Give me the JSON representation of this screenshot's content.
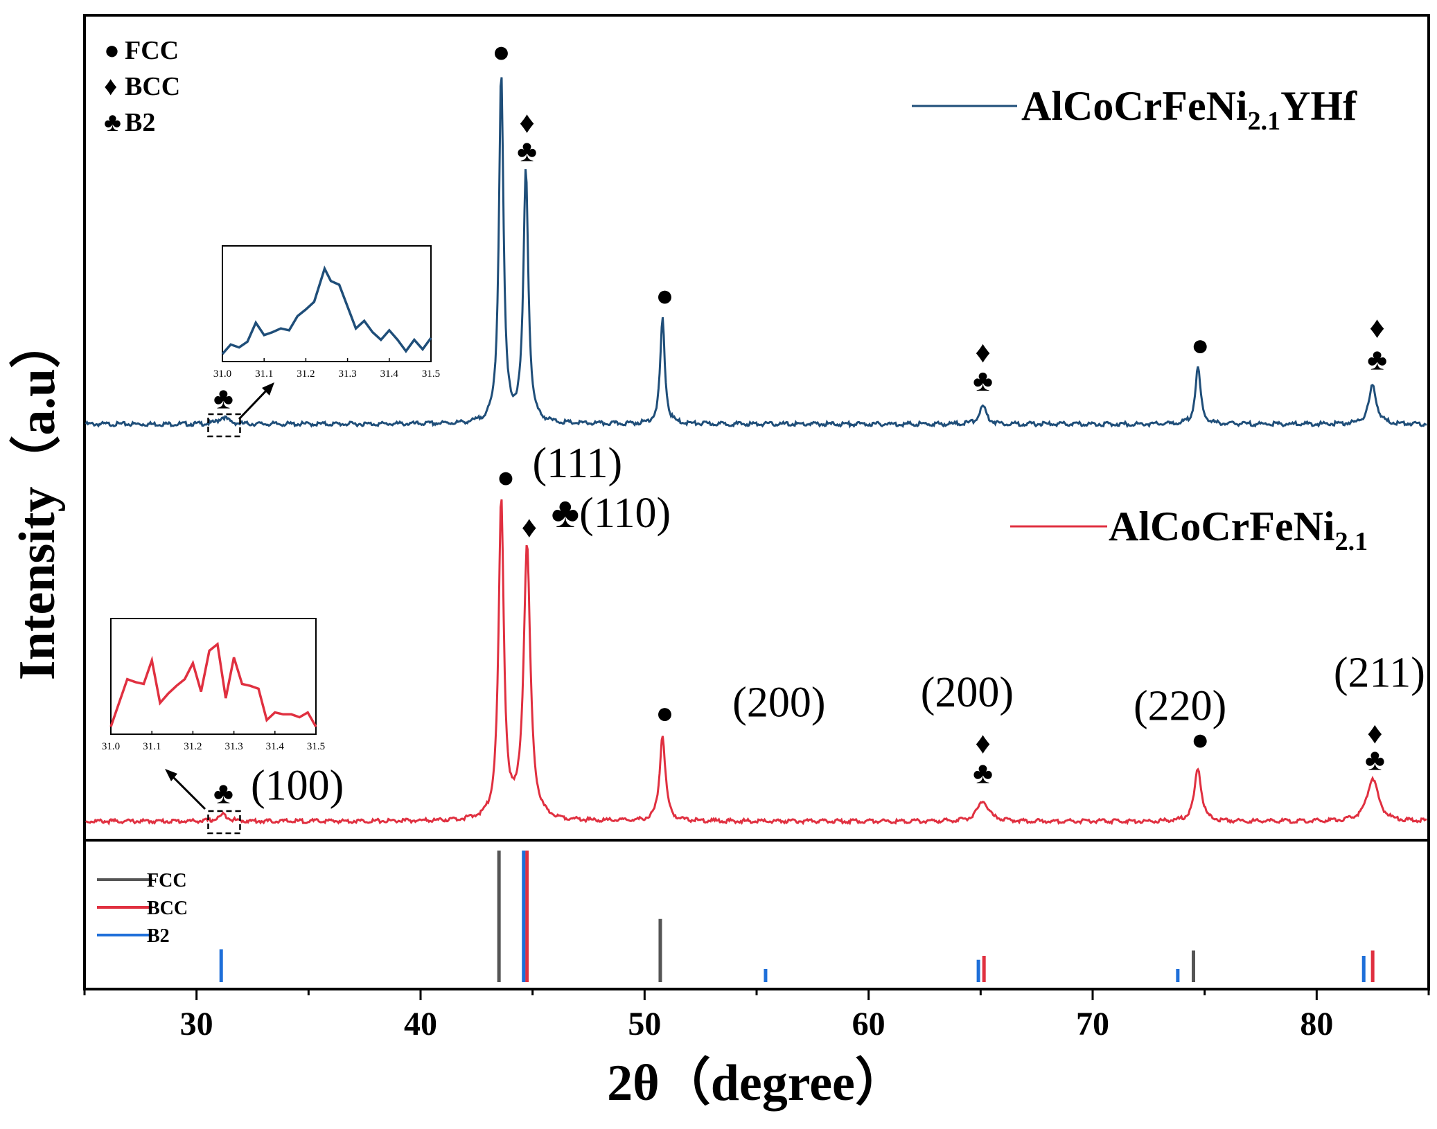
{
  "chart_data": {
    "type": "line",
    "xlabel": "2θ（degree）",
    "ylabel": "Intensity（a.u）",
    "xlim": [
      25,
      85
    ],
    "x_ticks": [
      "30",
      "40",
      "50",
      "60",
      "70",
      "80"
    ],
    "phase_legend": [
      {
        "symbol": "●",
        "label": "FCC"
      },
      {
        "symbol": "♦",
        "label": "BCC"
      },
      {
        "symbol": "♣",
        "label": "B2"
      }
    ],
    "series": [
      {
        "name": "AlCoCrFeNi2.1YHf",
        "name_main": "AlCoCrFeNi",
        "name_sub": "2.1",
        "name_tail": "YHf",
        "color": "#1f4e79",
        "baseline": 0.015,
        "peaks": [
          {
            "x": 31.2,
            "h": 0.02,
            "w": 0.25
          },
          {
            "x": 43.6,
            "h": 1.0,
            "w": 0.12
          },
          {
            "x": 44.7,
            "h": 0.72,
            "w": 0.13
          },
          {
            "x": 50.8,
            "h": 0.3,
            "w": 0.12
          },
          {
            "x": 65.1,
            "h": 0.05,
            "w": 0.2
          },
          {
            "x": 74.7,
            "h": 0.16,
            "w": 0.14
          },
          {
            "x": 82.5,
            "h": 0.11,
            "w": 0.2
          }
        ],
        "annotations": [
          {
            "x": 43.6,
            "y": 1.04,
            "text": "●"
          },
          {
            "x": 44.75,
            "y": 0.84,
            "text": "♦"
          },
          {
            "x": 44.75,
            "y": 0.76,
            "text": "♣"
          },
          {
            "x": 50.9,
            "y": 0.35,
            "text": "●"
          },
          {
            "x": 65.1,
            "y": 0.19,
            "text": "♦"
          },
          {
            "x": 65.1,
            "y": 0.11,
            "text": "♣"
          },
          {
            "x": 74.8,
            "y": 0.21,
            "text": "●"
          },
          {
            "x": 82.7,
            "y": 0.26,
            "text": "♦"
          },
          {
            "x": 82.7,
            "y": 0.17,
            "text": "♣"
          },
          {
            "x": 31.2,
            "y": 0.06,
            "text": "♣"
          }
        ]
      },
      {
        "name": "AlCoCrFeNi2.1",
        "name_main": "AlCoCrFeNi",
        "name_sub": "2.1",
        "name_tail": "",
        "color": "#e03040",
        "baseline": 0.015,
        "peaks": [
          {
            "x": 31.2,
            "h": 0.02,
            "w": 0.25
          },
          {
            "x": 43.6,
            "h": 0.96,
            "w": 0.14
          },
          {
            "x": 44.75,
            "h": 0.82,
            "w": 0.18
          },
          {
            "x": 50.8,
            "h": 0.26,
            "w": 0.15
          },
          {
            "x": 65.1,
            "h": 0.06,
            "w": 0.3
          },
          {
            "x": 74.7,
            "h": 0.16,
            "w": 0.18
          },
          {
            "x": 82.5,
            "h": 0.13,
            "w": 0.3
          }
        ],
        "annotations": [
          {
            "x": 43.8,
            "y": 1.02,
            "text": "●"
          },
          {
            "x": 44.85,
            "y": 0.87,
            "text": "♦"
          },
          {
            "x": 50.9,
            "y": 0.31,
            "text": "●"
          },
          {
            "x": 65.1,
            "y": 0.22,
            "text": "♦"
          },
          {
            "x": 65.1,
            "y": 0.13,
            "text": "♣"
          },
          {
            "x": 74.8,
            "y": 0.23,
            "text": "●"
          },
          {
            "x": 82.6,
            "y": 0.25,
            "text": "♦"
          },
          {
            "x": 82.6,
            "y": 0.17,
            "text": "♣"
          },
          {
            "x": 31.2,
            "y": 0.07,
            "text": "♣"
          }
        ],
        "plane_labels": [
          {
            "x": 47.0,
            "y": 1.05,
            "text": "(111)"
          },
          {
            "x": 48.5,
            "y": 0.9,
            "text": "♣(110)"
          },
          {
            "x": 56.0,
            "y": 0.33,
            "text": "(200)"
          },
          {
            "x": 64.4,
            "y": 0.36,
            "text": "(200)"
          },
          {
            "x": 73.9,
            "y": 0.32,
            "text": "(220)"
          },
          {
            "x": 82.8,
            "y": 0.42,
            "text": "(211)"
          },
          {
            "x": 34.5,
            "y": 0.08,
            "text": "(100)"
          }
        ]
      }
    ],
    "insets": [
      {
        "series": "AlCoCrFeNi2.1YHf",
        "xlim": [
          31.0,
          31.5
        ],
        "ticks": [
          "31.0",
          "31.1",
          "31.2",
          "31.3",
          "31.4",
          "31.5"
        ],
        "points": [
          [
            31.0,
            0.05
          ],
          [
            31.02,
            0.15
          ],
          [
            31.04,
            0.12
          ],
          [
            31.06,
            0.18
          ],
          [
            31.08,
            0.38
          ],
          [
            31.1,
            0.25
          ],
          [
            31.12,
            0.28
          ],
          [
            31.14,
            0.32
          ],
          [
            31.16,
            0.3
          ],
          [
            31.18,
            0.45
          ],
          [
            31.2,
            0.52
          ],
          [
            31.22,
            0.6
          ],
          [
            31.245,
            0.95
          ],
          [
            31.26,
            0.82
          ],
          [
            31.28,
            0.78
          ],
          [
            31.3,
            0.55
          ],
          [
            31.32,
            0.32
          ],
          [
            31.34,
            0.4
          ],
          [
            31.36,
            0.28
          ],
          [
            31.38,
            0.2
          ],
          [
            31.4,
            0.3
          ],
          [
            31.42,
            0.2
          ],
          [
            31.44,
            0.08
          ],
          [
            31.46,
            0.2
          ],
          [
            31.48,
            0.1
          ],
          [
            31.5,
            0.22
          ]
        ]
      },
      {
        "series": "AlCoCrFeNi2.1",
        "xlim": [
          31.0,
          31.5
        ],
        "ticks": [
          "31.0",
          "31.1",
          "31.2",
          "31.3",
          "31.4",
          "31.5"
        ],
        "points": [
          [
            31.0,
            0.05
          ],
          [
            31.02,
            0.3
          ],
          [
            31.04,
            0.55
          ],
          [
            31.06,
            0.52
          ],
          [
            31.08,
            0.5
          ],
          [
            31.1,
            0.75
          ],
          [
            31.12,
            0.3
          ],
          [
            31.14,
            0.4
          ],
          [
            31.16,
            0.48
          ],
          [
            31.18,
            0.55
          ],
          [
            31.2,
            0.72
          ],
          [
            31.22,
            0.42
          ],
          [
            31.24,
            0.85
          ],
          [
            31.26,
            0.92
          ],
          [
            31.28,
            0.35
          ],
          [
            31.3,
            0.78
          ],
          [
            31.32,
            0.5
          ],
          [
            31.34,
            0.48
          ],
          [
            31.36,
            0.45
          ],
          [
            31.38,
            0.12
          ],
          [
            31.4,
            0.2
          ],
          [
            31.42,
            0.18
          ],
          [
            31.44,
            0.18
          ],
          [
            31.46,
            0.15
          ],
          [
            31.48,
            0.2
          ],
          [
            31.5,
            0.05
          ]
        ]
      }
    ],
    "reference": {
      "legend": [
        {
          "label": "FCC",
          "color": "#555555"
        },
        {
          "label": "BCC",
          "color": "#e03040"
        },
        {
          "label": "B2",
          "color": "#1e6fd9"
        }
      ],
      "lines": [
        {
          "phase": "FCC",
          "x": 43.5,
          "h": 1.0
        },
        {
          "phase": "FCC",
          "x": 50.7,
          "h": 0.48
        },
        {
          "phase": "FCC",
          "x": 74.5,
          "h": 0.24
        },
        {
          "phase": "BCC",
          "x": 44.75,
          "h": 1.0
        },
        {
          "phase": "BCC",
          "x": 65.15,
          "h": 0.2
        },
        {
          "phase": "BCC",
          "x": 82.5,
          "h": 0.24
        },
        {
          "phase": "B2",
          "x": 44.6,
          "h": 1.0
        },
        {
          "phase": "B2",
          "x": 31.1,
          "h": 0.25
        },
        {
          "phase": "B2",
          "x": 55.4,
          "h": 0.1
        },
        {
          "phase": "B2",
          "x": 64.9,
          "h": 0.17
        },
        {
          "phase": "B2",
          "x": 73.8,
          "h": 0.1
        },
        {
          "phase": "B2",
          "x": 82.1,
          "h": 0.2
        }
      ]
    }
  }
}
